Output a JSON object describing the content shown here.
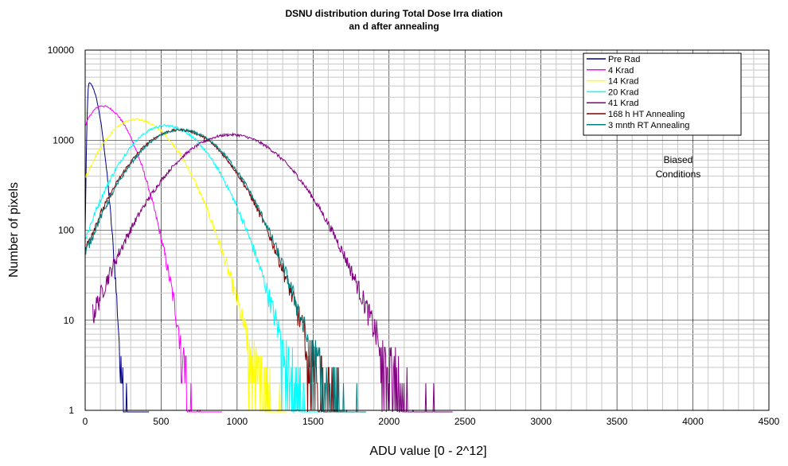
{
  "chart_data": {
    "type": "line",
    "title": "DSNU distribution during Total Dose Irra diation",
    "subtitle": "an d after annealing",
    "xlabel": "ADU value [0 - 2^12]",
    "ylabel": "Number of pixels",
    "xlim": [
      0,
      4500
    ],
    "ylim": [
      1,
      10000
    ],
    "yscale": "log",
    "grid": true,
    "legend_position": "top-right",
    "x_ticks": [
      "0",
      "500",
      "1000",
      "1500",
      "2000",
      "2500",
      "3000",
      "3500",
      "4000",
      "4500"
    ],
    "y_ticks": [
      "1",
      "10",
      "100",
      "1000",
      "10000"
    ],
    "annotation": [
      "Biased",
      "Conditions"
    ],
    "series": [
      {
        "name": "Pre Rad",
        "color": "#000080",
        "peak_x": 25,
        "peak_y": 4300,
        "sigma_left": 9,
        "sigma_right": 55,
        "x_start": 0,
        "x_end": 420
      },
      {
        "name": "4 Krad",
        "color": "#ff00ff",
        "peak_x": 110,
        "peak_y": 2400,
        "sigma_left": 110,
        "sigma_right": 150,
        "x_start": 0,
        "x_end": 900
      },
      {
        "name": "14 Krad",
        "color": "#ffff00",
        "peak_x": 330,
        "peak_y": 1700,
        "sigma_left": 190,
        "sigma_right": 220,
        "x_start": 0,
        "x_end": 1330
      },
      {
        "name": " 20 Krad",
        "color": "#00ffff",
        "peak_x": 530,
        "peak_y": 1450,
        "sigma_left": 220,
        "sigma_right": 230,
        "x_start": 0,
        "x_end": 1550
      },
      {
        "name": "41 Krad",
        "color": "#800080",
        "peak_x": 960,
        "peak_y": 1150,
        "sigma_left": 300,
        "sigma_right": 300,
        "x_start": 50,
        "x_end": 2420
      },
      {
        "name": "168 h HT Annealing",
        "color": "#800000",
        "peak_x": 620,
        "peak_y": 1300,
        "sigma_left": 250,
        "sigma_right": 255,
        "x_start": 0,
        "x_end": 1820
      },
      {
        "name": "3 mnth RT Annealing",
        "color": "#008080",
        "peak_x": 630,
        "peak_y": 1300,
        "sigma_left": 250,
        "sigma_right": 255,
        "x_start": 0,
        "x_end": 1850
      }
    ]
  }
}
